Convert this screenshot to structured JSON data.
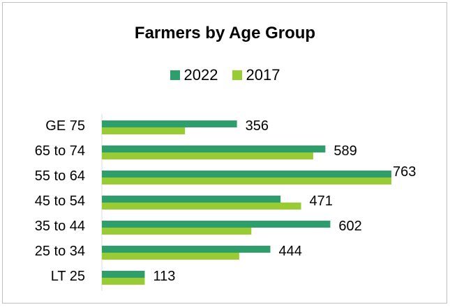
{
  "chart_data": {
    "type": "bar",
    "orientation": "horizontal",
    "title": "Farmers by Age Group",
    "categories": [
      "GE 75",
      "65 to 74",
      "55 to 64",
      "45 to 54",
      "35 to 44",
      "25 to 34",
      "LT 25"
    ],
    "series": [
      {
        "name": "2022",
        "color": "#2e9e6a",
        "values": [
          356,
          589,
          763,
          471,
          602,
          444,
          113
        ]
      },
      {
        "name": "2017",
        "color": "#99cc33",
        "values": [
          219,
          557,
          763,
          525,
          394,
          362,
          113
        ]
      }
    ],
    "data_labels": [
      "356",
      "589",
      "763",
      "471",
      "602",
      "444",
      "113"
    ],
    "xlim": [
      0,
      763
    ],
    "legend_position": "top",
    "grid": false
  }
}
